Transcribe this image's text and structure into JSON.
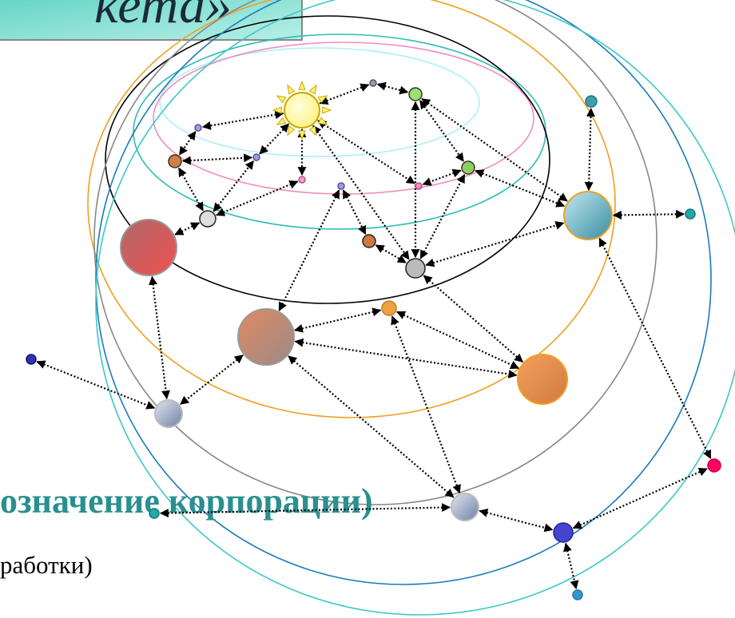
{
  "header": {
    "title": "кета»"
  },
  "body": {
    "lines": [
      "означение корпорации)",
      "работки)"
    ]
  }
}
